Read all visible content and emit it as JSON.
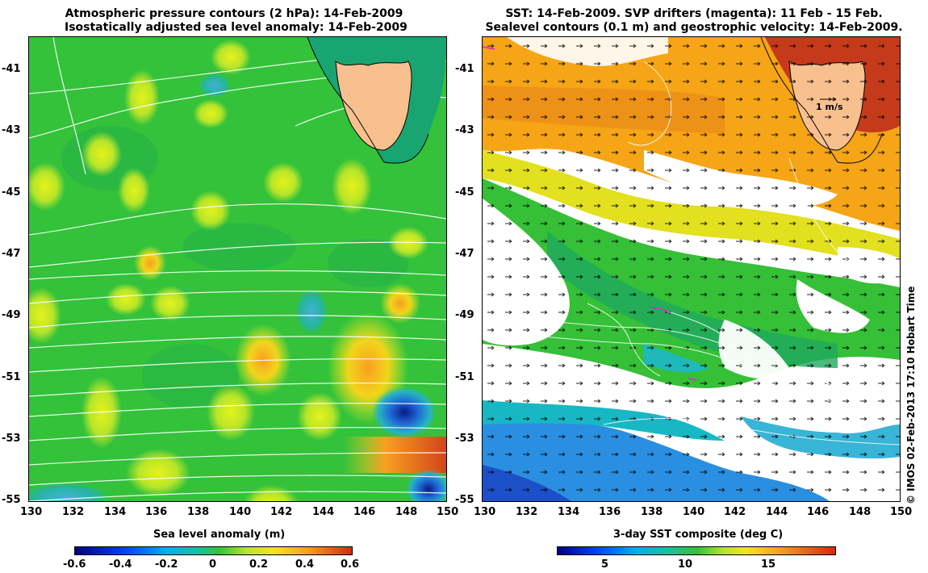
{
  "left_panel": {
    "title_line1": "Atmospheric pressure contours (2 hPa): 14-Feb-2009",
    "title_line2": "Isostatically adjusted sea level anomaly: 14-Feb-2009",
    "y_ticks": [
      "-41",
      "-43",
      "-45",
      "-47",
      "-49",
      "-51",
      "-53",
      "-55"
    ],
    "x_ticks": [
      "130",
      "132",
      "134",
      "136",
      "138",
      "140",
      "142",
      "144",
      "146",
      "148",
      "150"
    ],
    "colorbar_label": "Sea level anomaly (m)",
    "colorbar_ticks": [
      "-0.6",
      "-0.4",
      "-0.2",
      "0",
      "0.2",
      "0.4",
      "0.6"
    ],
    "colors": {
      "ocean": "#33c23a",
      "land": "#f8c08f"
    }
  },
  "right_panel": {
    "title_line1": "SST: 14-Feb-2009. SVP drifters (magenta): 11 Feb - 15 Feb.",
    "title_line2": "Sealevel contours (0.1 m) and geostrophic velocity: 14-Feb-2009.",
    "y_ticks": [
      "-41",
      "-43",
      "-45",
      "-47",
      "-49",
      "-51",
      "-53",
      "-55"
    ],
    "x_ticks": [
      "130",
      "132",
      "134",
      "136",
      "138",
      "140",
      "142",
      "144",
      "146",
      "148",
      "150"
    ],
    "velocity_label": "1 m/s",
    "colorbar_label": "3-day SST composite (deg C)",
    "colorbar_ticks": [
      "5",
      "10",
      "15"
    ],
    "colors": {
      "warm": "#f5a515",
      "cloud": "#ffffff",
      "land": "#f8c08f"
    }
  },
  "credit": "© IMOS 02-Feb-2013 17:10 Hobart Time"
}
